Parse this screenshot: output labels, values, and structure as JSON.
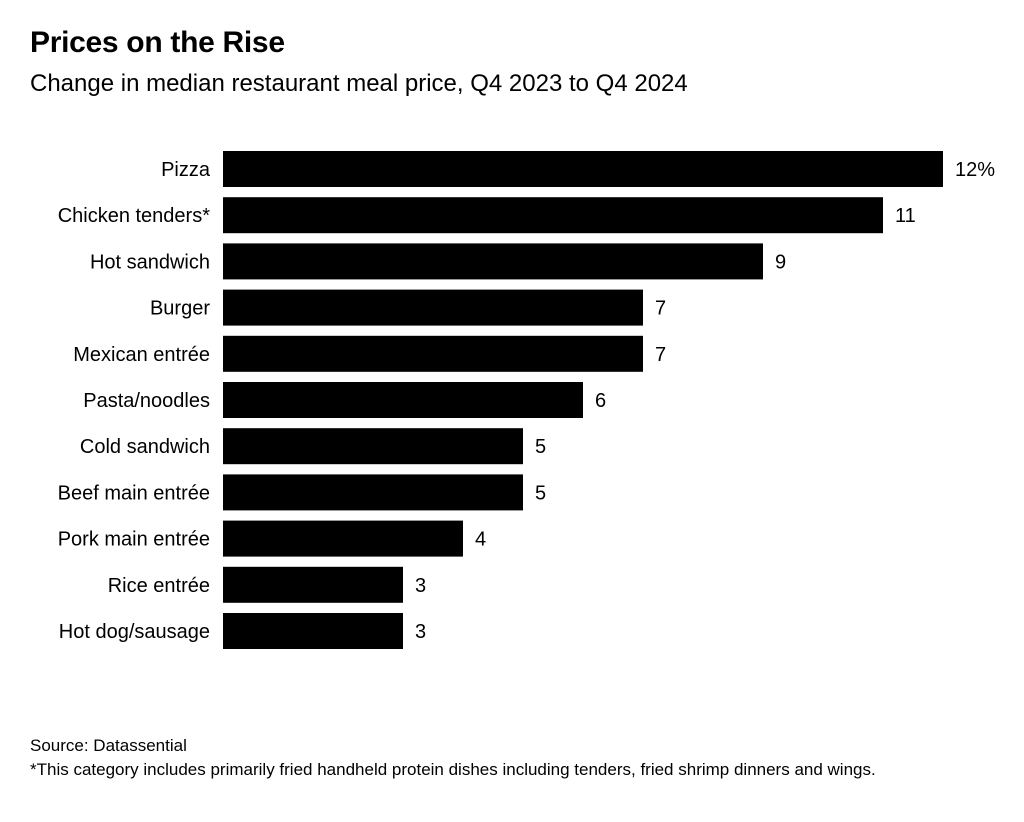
{
  "title": "Prices on the Rise",
  "subtitle": "Change in median restaurant meal price, Q4 2023 to Q4 2024",
  "source": "Source: Datassential",
  "footnote": "*This category includes primarily fried handheld protein dishes including tenders, fried shrimp dinners and wings.",
  "chart_data": {
    "type": "bar",
    "orientation": "horizontal",
    "categories": [
      "Pizza",
      "Chicken tenders*",
      "Hot sandwich",
      "Burger",
      "Mexican entrée",
      "Pasta/noodles",
      "Cold sandwich",
      "Beef main entrée",
      "Pork main entrée",
      "Rice entrée",
      "Hot dog/sausage"
    ],
    "values": [
      12,
      11,
      9,
      7,
      7,
      6,
      5,
      5,
      4,
      3,
      3
    ],
    "value_labels": [
      "12%",
      "11",
      "9",
      "7",
      "7",
      "6",
      "5",
      "5",
      "4",
      "3",
      "3"
    ],
    "title": "Prices on the Rise",
    "subtitle": "Change in median restaurant meal price, Q4 2023 to Q4 2024",
    "xlim": [
      0,
      12
    ],
    "grid": false,
    "bar_color": "#000000"
  }
}
